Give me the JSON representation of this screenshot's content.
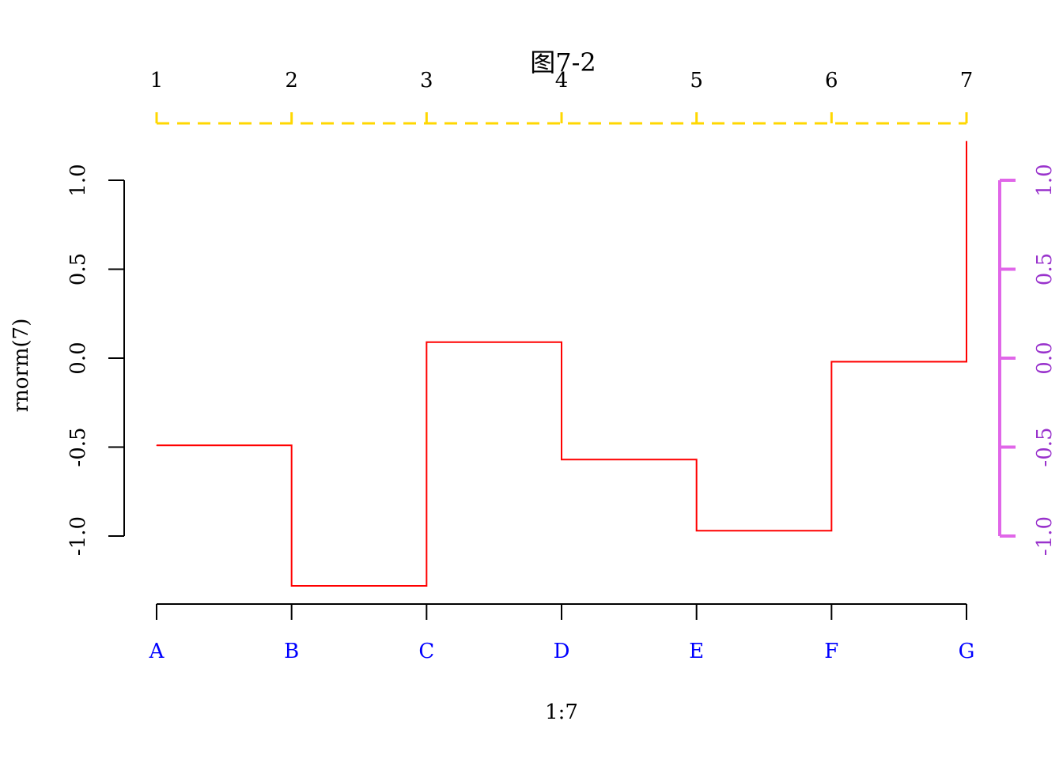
{
  "chart_data": {
    "type": "line",
    "title": "图7-2",
    "xlabel": "1:7",
    "ylabel": "rnorm(7)",
    "x": [
      1,
      2,
      3,
      4,
      5,
      6,
      7
    ],
    "values": [
      -0.49,
      -1.28,
      0.09,
      -0.57,
      -0.97,
      -0.02,
      1.22
    ],
    "line_style": "step",
    "line_color": "#ff0000",
    "xlim": [
      1,
      7
    ],
    "ylim": [
      -1.28,
      1.22
    ],
    "bottom_axis": {
      "labels": [
        "A",
        "B",
        "C",
        "D",
        "E",
        "F",
        "G"
      ],
      "label_color": "#0000ff",
      "line_color": "#000000"
    },
    "top_axis": {
      "labels": [
        "1",
        "2",
        "3",
        "4",
        "5",
        "6",
        "7"
      ],
      "label_color": "#000000",
      "line_color": "#ffd700",
      "line_style": "dashed"
    },
    "left_axis": {
      "ticks": [
        -1.0,
        -0.5,
        0.0,
        0.5,
        1.0
      ],
      "labels": [
        "-1.0",
        "-0.5",
        "0.0",
        "0.5",
        "1.0"
      ],
      "label_color": "#000000",
      "line_color": "#000000"
    },
    "right_axis": {
      "ticks": [
        -1.0,
        -0.5,
        0.0,
        0.5,
        1.0
      ],
      "labels": [
        "-1.0",
        "-0.5",
        "0.0",
        "0.5",
        "1.0"
      ],
      "label_color": "#9932cc",
      "line_color": "#e066e8"
    },
    "grid": false,
    "legend": "none"
  }
}
